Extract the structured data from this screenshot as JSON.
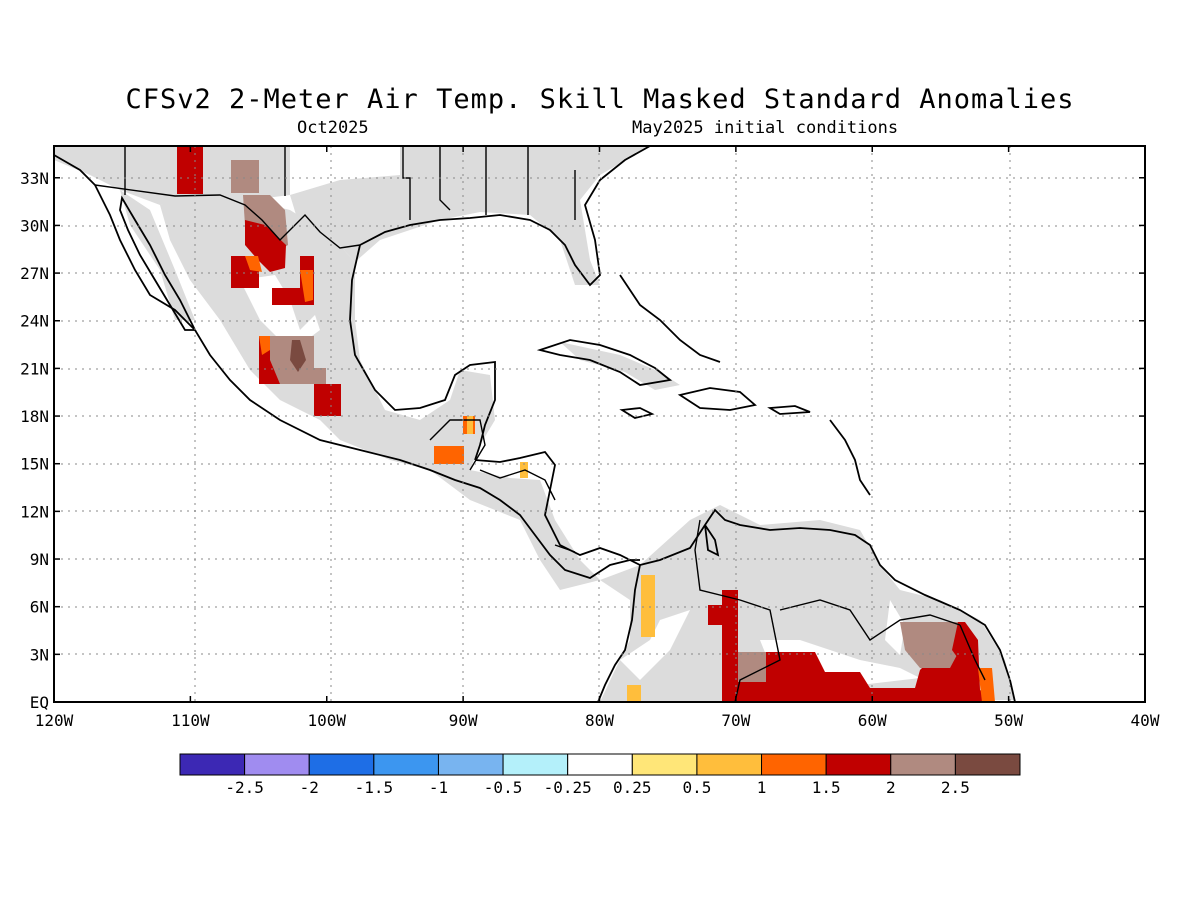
{
  "title": "CFSv2 2-Meter Air Temp. Skill Masked Standard Anomalies",
  "valid_month": "Oct2025",
  "initial_conditions": "May2025 initial conditions",
  "map": {
    "lon_range": [
      -120,
      -40
    ],
    "lat_range": [
      0,
      35
    ],
    "lat_labels": [
      "EQ",
      "3N",
      "6N",
      "9N",
      "12N",
      "15N",
      "18N",
      "21N",
      "24N",
      "27N",
      "30N",
      "33N"
    ],
    "lon_labels": [
      "120W",
      "110W",
      "100W",
      "90W",
      "80W",
      "70W",
      "60W",
      "50W",
      "40W"
    ],
    "grid": "dotted"
  },
  "colorbar": {
    "labels": [
      "-2.5",
      "-2",
      "-1.5",
      "-1",
      "-0.5",
      "-0.25",
      "0.25",
      "0.5",
      "1",
      "1.5",
      "2",
      "2.5"
    ],
    "colors": [
      "#3c28b4",
      "#a08cf0",
      "#1e6ee6",
      "#3c96f0",
      "#78b4f0",
      "#b4f0fa",
      "#ffffff",
      "#ffe678",
      "#ffbe3c",
      "#ff6400",
      "#c00000",
      "#b08a80",
      "#7a4a40"
    ]
  },
  "colors": {
    "skill_mask": "#dcdcdc",
    "ocean": "#ffffff"
  }
}
